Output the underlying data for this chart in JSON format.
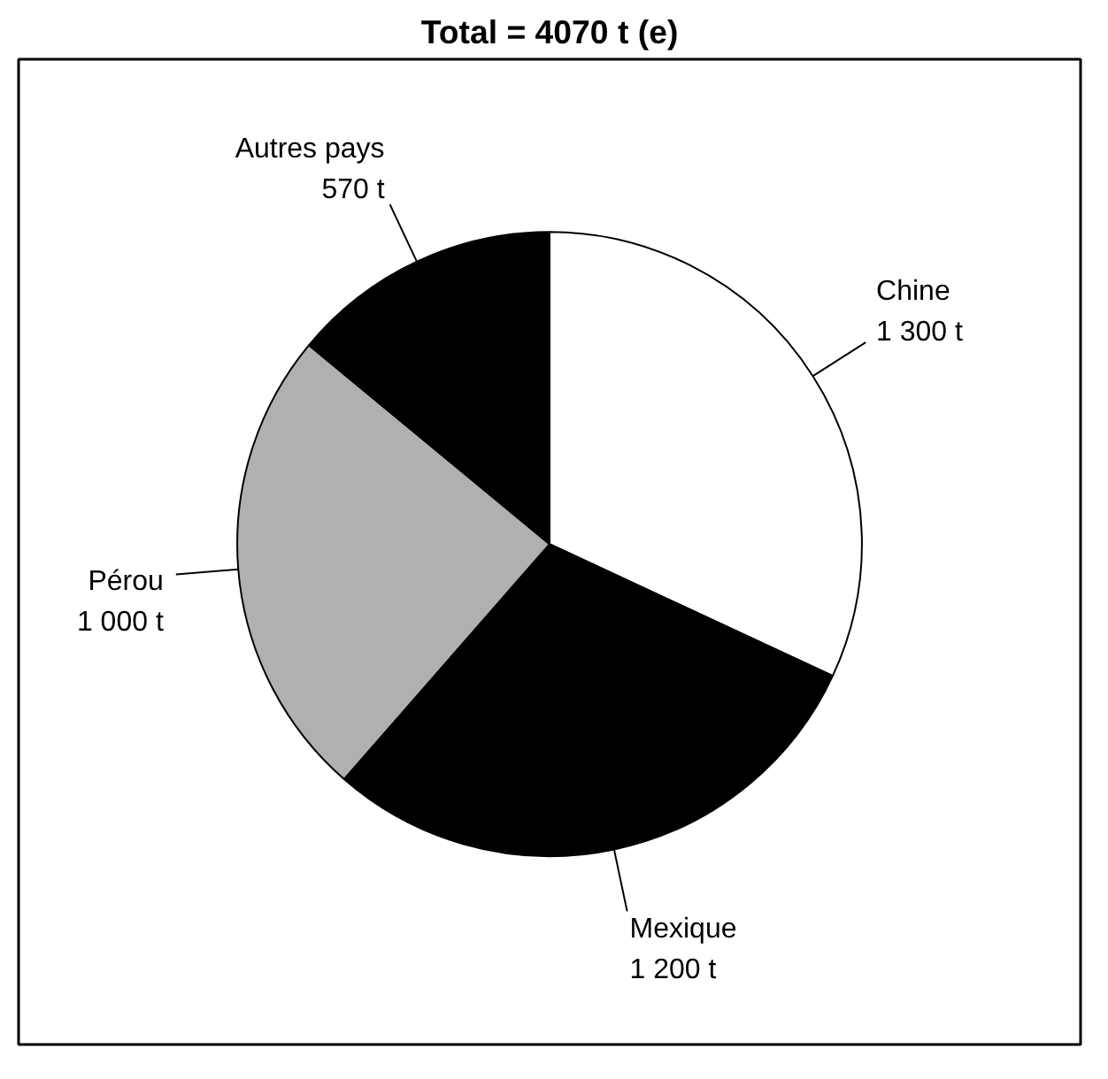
{
  "chart_data": {
    "type": "pie",
    "title": "Total = 4070 t (e)",
    "categories": [
      "Chine",
      "Mexique",
      "Pérou",
      "Autres pays"
    ],
    "values": [
      1300,
      1200,
      1000,
      570
    ],
    "value_labels": [
      "1 300 t",
      "1 200 t",
      "1 000 t",
      "570 t"
    ],
    "colors": [
      "#ffffff",
      "#000000",
      "#b0b0b0",
      "#000000"
    ]
  }
}
